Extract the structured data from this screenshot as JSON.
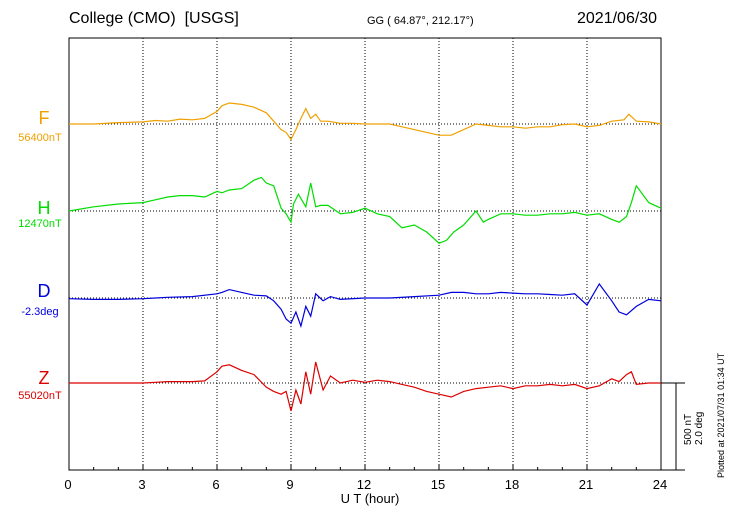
{
  "header": {
    "station": "College (CMO)",
    "source": "[USGS]",
    "coords": "GG ( 64.87°, 212.17°)",
    "date": "2021/06/30"
  },
  "components": [
    {
      "letter": "F",
      "baseline": "56400nT",
      "color": "#f0a000"
    },
    {
      "letter": "H",
      "baseline": "12470nT",
      "color": "#00dd00"
    },
    {
      "letter": "D",
      "baseline": "-2.3deg",
      "color": "#0000dd"
    },
    {
      "letter": "Z",
      "baseline": "55020nT",
      "color": "#dd0000"
    }
  ],
  "scale": {
    "nt": "500 nT",
    "deg": "2.0 deg"
  },
  "plotted": "Plotted at 2021/07/31 01:34 UT",
  "chart_data": {
    "type": "line",
    "xlabel": "U T (hour)",
    "xlim": [
      0,
      24
    ],
    "xticks": [
      "0",
      "3",
      "6",
      "9",
      "12",
      "15",
      "18",
      "21",
      "24"
    ],
    "grid": true,
    "units_note": "y values are offsets from baseline in nT (D in nT-equivalent scale)",
    "series": [
      {
        "name": "F",
        "x": [
          0,
          1,
          2,
          3,
          3.5,
          4,
          4.5,
          5,
          5.5,
          6,
          6.2,
          6.5,
          7,
          7.5,
          8,
          8.3,
          8.6,
          8.8,
          9,
          9.2,
          9.4,
          9.6,
          9.8,
          10,
          10.2,
          10.5,
          11,
          11.5,
          12,
          12.5,
          13,
          13.5,
          14,
          14.5,
          15,
          15.5,
          16,
          16.5,
          17,
          17.5,
          18,
          18.5,
          19,
          19.5,
          20,
          20.5,
          21,
          21.5,
          22,
          22.5,
          22.7,
          23,
          23.5,
          24
        ],
        "y": [
          0,
          0,
          10,
          15,
          25,
          20,
          35,
          30,
          40,
          90,
          130,
          150,
          140,
          120,
          80,
          20,
          -40,
          -60,
          -110,
          -40,
          40,
          110,
          40,
          70,
          20,
          20,
          5,
          5,
          0,
          0,
          0,
          -20,
          -40,
          -60,
          -80,
          -80,
          -40,
          0,
          -10,
          -20,
          -20,
          -30,
          -20,
          -20,
          -5,
          0,
          -20,
          -10,
          20,
          30,
          70,
          20,
          15,
          0
        ]
      },
      {
        "name": "H",
        "x": [
          0,
          1,
          2,
          3,
          3.5,
          4,
          4.5,
          5,
          5.5,
          6,
          6.2,
          6.5,
          7,
          7.5,
          7.8,
          8,
          8.3,
          8.6,
          8.8,
          9,
          9.1,
          9.3,
          9.6,
          9.8,
          10,
          10.2,
          10.5,
          11,
          11.5,
          12,
          12.5,
          13,
          13.5,
          14,
          14.5,
          15,
          15.3,
          15.6,
          16,
          16.5,
          16.8,
          17,
          17.5,
          18,
          18.5,
          19,
          19.5,
          20,
          20.5,
          21,
          21.5,
          22,
          22.3,
          22.6,
          22.8,
          23,
          23.5,
          24
        ],
        "y": [
          0,
          30,
          50,
          60,
          80,
          100,
          110,
          110,
          100,
          140,
          130,
          150,
          160,
          220,
          240,
          200,
          180,
          20,
          -20,
          -80,
          50,
          120,
          30,
          200,
          30,
          40,
          40,
          -20,
          -10,
          20,
          -20,
          -40,
          -120,
          -100,
          -150,
          -230,
          -210,
          -150,
          -100,
          0,
          -80,
          -60,
          -20,
          -20,
          -30,
          -30,
          -20,
          -20,
          -10,
          -30,
          -20,
          -60,
          -80,
          -40,
          60,
          180,
          60,
          20
        ]
      },
      {
        "name": "D",
        "x": [
          0,
          1,
          2,
          3,
          3.5,
          4,
          5,
          6,
          6.2,
          6.5,
          7,
          7.5,
          8,
          8.3,
          8.6,
          8.8,
          9,
          9.2,
          9.4,
          9.6,
          9.8,
          10,
          10.3,
          10.6,
          11,
          12,
          13,
          14,
          15,
          15.5,
          16,
          16.5,
          17,
          17.5,
          18,
          18.5,
          19,
          19.5,
          20,
          20.5,
          21,
          21.5,
          22,
          22.3,
          22.6,
          23,
          23.5,
          24
        ],
        "y": [
          -5,
          -10,
          -10,
          -5,
          0,
          5,
          10,
          30,
          40,
          60,
          40,
          20,
          15,
          -20,
          -80,
          -150,
          -180,
          -100,
          -200,
          -60,
          -130,
          30,
          -20,
          10,
          -10,
          0,
          0,
          10,
          20,
          40,
          40,
          30,
          30,
          40,
          35,
          30,
          30,
          25,
          20,
          30,
          -50,
          100,
          -20,
          -100,
          -120,
          -60,
          -10,
          -20
        ]
      },
      {
        "name": "Z",
        "x": [
          0,
          1,
          2,
          3,
          3.5,
          4,
          4.5,
          5,
          5.5,
          6,
          6.2,
          6.5,
          7,
          7.5,
          8,
          8.3,
          8.6,
          8.8,
          9,
          9.2,
          9.4,
          9.6,
          9.8,
          10,
          10.3,
          10.6,
          11,
          11.5,
          12,
          12.5,
          13,
          13.5,
          14,
          14.5,
          15,
          15.5,
          16,
          16.5,
          17,
          17.5,
          18,
          18.5,
          19,
          19.5,
          20,
          20.5,
          21,
          21.5,
          22,
          22.3,
          22.6,
          22.8,
          23,
          23.5,
          24
        ],
        "y": [
          0,
          0,
          0,
          0,
          5,
          10,
          10,
          10,
          15,
          80,
          120,
          130,
          90,
          60,
          -30,
          -60,
          -80,
          -60,
          -200,
          -50,
          -150,
          80,
          -80,
          150,
          -50,
          50,
          0,
          20,
          5,
          20,
          10,
          -10,
          -30,
          -60,
          -80,
          -100,
          -60,
          -40,
          -30,
          -20,
          -40,
          -20,
          -20,
          -10,
          -20,
          -10,
          -40,
          -20,
          30,
          10,
          60,
          80,
          -10,
          0,
          0
        ]
      }
    ]
  }
}
